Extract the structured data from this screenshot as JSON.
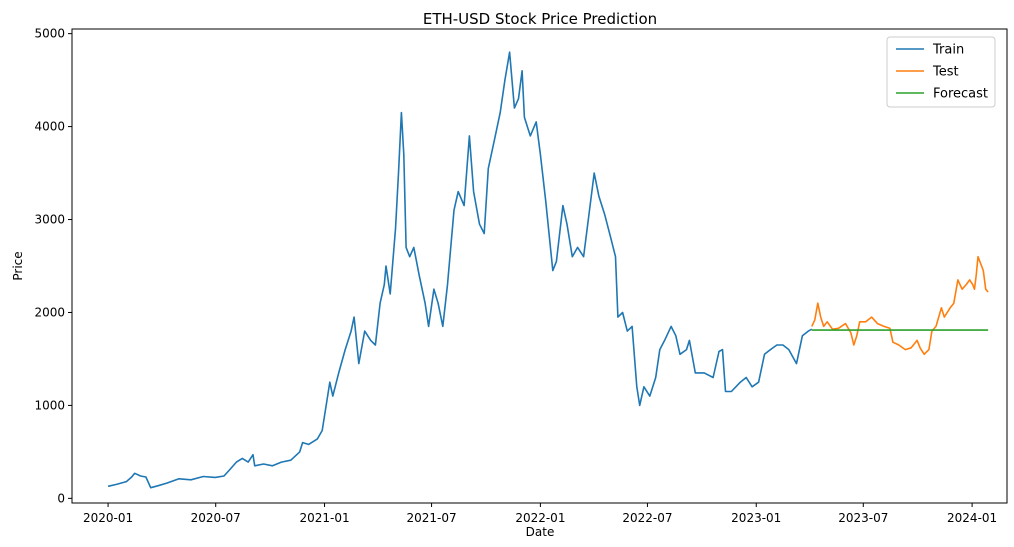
{
  "chart_data": {
    "type": "line",
    "title": "ETH-USD Stock Price Prediction",
    "xlabel": "Date",
    "ylabel": "Price",
    "x_ticks": [
      "2020-01",
      "2020-07",
      "2021-01",
      "2021-07",
      "2022-01",
      "2022-07",
      "2023-01",
      "2023-07",
      "2024-01"
    ],
    "y_ticks": [
      0,
      1000,
      2000,
      3000,
      4000,
      5000
    ],
    "xlim": [
      "2019-11-01",
      "2024-02-29"
    ],
    "ylim": [
      -50,
      5050
    ],
    "grid": false,
    "legend_position": "top-right",
    "series": [
      {
        "name": "Train",
        "color": "#1f77b4",
        "points": [
          [
            "2020-01-01",
            130
          ],
          [
            "2020-01-15",
            150
          ],
          [
            "2020-02-01",
            180
          ],
          [
            "2020-02-10",
            230
          ],
          [
            "2020-02-15",
            270
          ],
          [
            "2020-02-25",
            240
          ],
          [
            "2020-03-05",
            230
          ],
          [
            "2020-03-13",
            115
          ],
          [
            "2020-03-25",
            135
          ],
          [
            "2020-04-10",
            165
          ],
          [
            "2020-04-30",
            210
          ],
          [
            "2020-05-20",
            200
          ],
          [
            "2020-06-10",
            235
          ],
          [
            "2020-06-30",
            225
          ],
          [
            "2020-07-15",
            240
          ],
          [
            "2020-07-25",
            310
          ],
          [
            "2020-08-05",
            390
          ],
          [
            "2020-08-15",
            430
          ],
          [
            "2020-08-25",
            390
          ],
          [
            "2020-09-02",
            470
          ],
          [
            "2020-09-05",
            350
          ],
          [
            "2020-09-20",
            370
          ],
          [
            "2020-10-05",
            350
          ],
          [
            "2020-10-20",
            390
          ],
          [
            "2020-11-05",
            410
          ],
          [
            "2020-11-20",
            500
          ],
          [
            "2020-11-25",
            600
          ],
          [
            "2020-12-05",
            580
          ],
          [
            "2020-12-20",
            640
          ],
          [
            "2020-12-28",
            730
          ],
          [
            "2021-01-05",
            1050
          ],
          [
            "2021-01-10",
            1250
          ],
          [
            "2021-01-15",
            1100
          ],
          [
            "2021-01-25",
            1350
          ],
          [
            "2021-02-05",
            1600
          ],
          [
            "2021-02-15",
            1800
          ],
          [
            "2021-02-20",
            1950
          ],
          [
            "2021-02-28",
            1450
          ],
          [
            "2021-03-10",
            1800
          ],
          [
            "2021-03-20",
            1700
          ],
          [
            "2021-03-28",
            1650
          ],
          [
            "2021-04-05",
            2100
          ],
          [
            "2021-04-12",
            2300
          ],
          [
            "2021-04-15",
            2500
          ],
          [
            "2021-04-22",
            2200
          ],
          [
            "2021-05-01",
            2900
          ],
          [
            "2021-05-06",
            3500
          ],
          [
            "2021-05-11",
            4150
          ],
          [
            "2021-05-15",
            3700
          ],
          [
            "2021-05-19",
            2700
          ],
          [
            "2021-05-25",
            2600
          ],
          [
            "2021-06-01",
            2700
          ],
          [
            "2021-06-10",
            2400
          ],
          [
            "2021-06-20",
            2100
          ],
          [
            "2021-06-26",
            1850
          ],
          [
            "2021-07-05",
            2250
          ],
          [
            "2021-07-12",
            2100
          ],
          [
            "2021-07-20",
            1850
          ],
          [
            "2021-07-28",
            2300
          ],
          [
            "2021-08-08",
            3100
          ],
          [
            "2021-08-15",
            3300
          ],
          [
            "2021-08-25",
            3150
          ],
          [
            "2021-09-03",
            3900
          ],
          [
            "2021-09-10",
            3300
          ],
          [
            "2021-09-20",
            2950
          ],
          [
            "2021-09-28",
            2850
          ],
          [
            "2021-10-05",
            3550
          ],
          [
            "2021-10-15",
            3850
          ],
          [
            "2021-10-25",
            4150
          ],
          [
            "2021-11-02",
            4500
          ],
          [
            "2021-11-10",
            4800
          ],
          [
            "2021-11-18",
            4200
          ],
          [
            "2021-11-25",
            4300
          ],
          [
            "2021-12-01",
            4600
          ],
          [
            "2021-12-05",
            4100
          ],
          [
            "2021-12-15",
            3900
          ],
          [
            "2021-12-25",
            4050
          ],
          [
            "2022-01-01",
            3700
          ],
          [
            "2022-01-10",
            3200
          ],
          [
            "2022-01-22",
            2450
          ],
          [
            "2022-01-28",
            2550
          ],
          [
            "2022-02-08",
            3150
          ],
          [
            "2022-02-15",
            2950
          ],
          [
            "2022-02-24",
            2600
          ],
          [
            "2022-03-05",
            2700
          ],
          [
            "2022-03-15",
            2600
          ],
          [
            "2022-03-25",
            3100
          ],
          [
            "2022-04-02",
            3500
          ],
          [
            "2022-04-10",
            3250
          ],
          [
            "2022-04-20",
            3050
          ],
          [
            "2022-04-30",
            2800
          ],
          [
            "2022-05-08",
            2600
          ],
          [
            "2022-05-12",
            1950
          ],
          [
            "2022-05-20",
            2000
          ],
          [
            "2022-05-28",
            1800
          ],
          [
            "2022-06-05",
            1850
          ],
          [
            "2022-06-13",
            1200
          ],
          [
            "2022-06-18",
            1000
          ],
          [
            "2022-06-25",
            1200
          ],
          [
            "2022-07-05",
            1100
          ],
          [
            "2022-07-15",
            1300
          ],
          [
            "2022-07-22",
            1600
          ],
          [
            "2022-07-30",
            1700
          ],
          [
            "2022-08-10",
            1850
          ],
          [
            "2022-08-18",
            1750
          ],
          [
            "2022-08-25",
            1550
          ],
          [
            "2022-09-05",
            1600
          ],
          [
            "2022-09-10",
            1700
          ],
          [
            "2022-09-20",
            1350
          ],
          [
            "2022-10-05",
            1350
          ],
          [
            "2022-10-20",
            1300
          ],
          [
            "2022-10-30",
            1580
          ],
          [
            "2022-11-05",
            1600
          ],
          [
            "2022-11-10",
            1150
          ],
          [
            "2022-11-20",
            1150
          ],
          [
            "2022-12-05",
            1250
          ],
          [
            "2022-12-15",
            1300
          ],
          [
            "2022-12-25",
            1200
          ],
          [
            "2023-01-05",
            1250
          ],
          [
            "2023-01-15",
            1550
          ],
          [
            "2023-01-25",
            1600
          ],
          [
            "2023-02-05",
            1650
          ],
          [
            "2023-02-15",
            1650
          ],
          [
            "2023-02-25",
            1600
          ],
          [
            "2023-03-10",
            1450
          ],
          [
            "2023-03-20",
            1750
          ],
          [
            "2023-03-30",
            1800
          ],
          [
            "2023-04-05",
            1820
          ]
        ]
      },
      {
        "name": "Test",
        "color": "#ff7f0e",
        "points": [
          [
            "2023-04-05",
            1850
          ],
          [
            "2023-04-10",
            1920
          ],
          [
            "2023-04-15",
            2100
          ],
          [
            "2023-04-20",
            1950
          ],
          [
            "2023-04-25",
            1850
          ],
          [
            "2023-05-01",
            1900
          ],
          [
            "2023-05-10",
            1820
          ],
          [
            "2023-05-20",
            1830
          ],
          [
            "2023-06-01",
            1880
          ],
          [
            "2023-06-10",
            1780
          ],
          [
            "2023-06-15",
            1650
          ],
          [
            "2023-06-20",
            1750
          ],
          [
            "2023-06-25",
            1900
          ],
          [
            "2023-07-05",
            1900
          ],
          [
            "2023-07-15",
            1950
          ],
          [
            "2023-07-25",
            1880
          ],
          [
            "2023-08-05",
            1850
          ],
          [
            "2023-08-15",
            1830
          ],
          [
            "2023-08-20",
            1680
          ],
          [
            "2023-08-30",
            1650
          ],
          [
            "2023-09-10",
            1600
          ],
          [
            "2023-09-20",
            1620
          ],
          [
            "2023-09-30",
            1700
          ],
          [
            "2023-10-05",
            1620
          ],
          [
            "2023-10-12",
            1550
          ],
          [
            "2023-10-20",
            1600
          ],
          [
            "2023-10-25",
            1800
          ],
          [
            "2023-11-01",
            1850
          ],
          [
            "2023-11-10",
            2050
          ],
          [
            "2023-11-15",
            1950
          ],
          [
            "2023-11-25",
            2050
          ],
          [
            "2023-12-01",
            2100
          ],
          [
            "2023-12-08",
            2350
          ],
          [
            "2023-12-15",
            2250
          ],
          [
            "2023-12-22",
            2300
          ],
          [
            "2023-12-28",
            2350
          ],
          [
            "2024-01-02",
            2300
          ],
          [
            "2024-01-05",
            2250
          ],
          [
            "2024-01-08",
            2400
          ],
          [
            "2024-01-11",
            2600
          ],
          [
            "2024-01-14",
            2550
          ],
          [
            "2024-01-17",
            2500
          ],
          [
            "2024-01-20",
            2450
          ],
          [
            "2024-01-24",
            2250
          ],
          [
            "2024-01-28",
            2220
          ]
        ]
      },
      {
        "name": "Forecast",
        "color": "#2ca02c",
        "points": [
          [
            "2023-04-05",
            1810
          ],
          [
            "2024-01-28",
            1810
          ]
        ]
      }
    ]
  }
}
